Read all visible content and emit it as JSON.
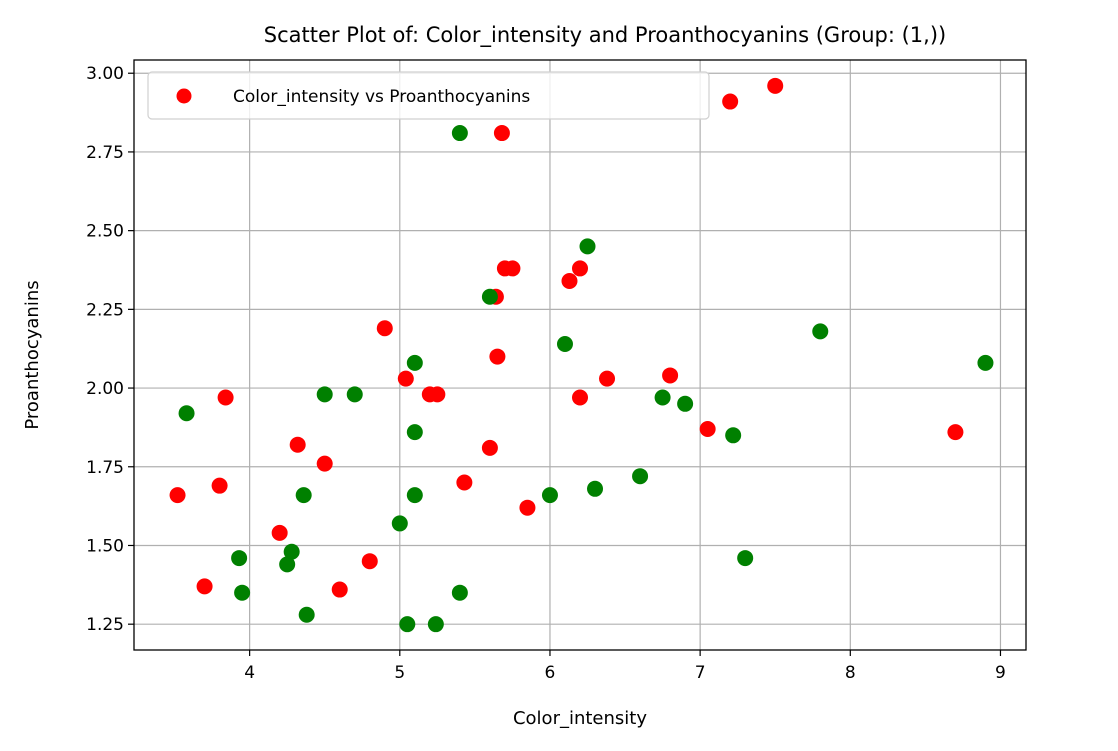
{
  "chart_data": {
    "type": "scatter",
    "title": "Scatter Plot of: Color_intensity and Proanthocyanins (Group: (1,))",
    "xlabel": "Color_intensity",
    "ylabel": "Proanthocyanins",
    "xlim": [
      3.23,
      9.17
    ],
    "ylim": [
      1.168,
      3.042
    ],
    "xticks": [
      4,
      5,
      6,
      7,
      8,
      9
    ],
    "yticks": [
      1.25,
      1.5,
      1.75,
      2.0,
      2.25,
      2.5,
      2.75,
      3.0
    ],
    "ytick_labels": [
      "1.25",
      "1.50",
      "1.75",
      "2.00",
      "2.25",
      "2.50",
      "2.75",
      "3.00"
    ],
    "grid": true,
    "legend_position": "upper-left",
    "legend": [
      {
        "label": "Color_intensity vs Proanthocyanins",
        "color": "#ff0000"
      }
    ],
    "series": [
      {
        "name": "Color_intensity vs Proanthocyanins",
        "color": "#ff0000",
        "points": [
          [
            3.52,
            1.66
          ],
          [
            3.7,
            1.37
          ],
          [
            3.8,
            1.69
          ],
          [
            3.84,
            1.97
          ],
          [
            4.2,
            1.54
          ],
          [
            4.32,
            1.82
          ],
          [
            4.5,
            1.76
          ],
          [
            4.6,
            1.36
          ],
          [
            4.8,
            1.45
          ],
          [
            4.9,
            2.19
          ],
          [
            5.04,
            2.03
          ],
          [
            5.2,
            1.98
          ],
          [
            5.25,
            1.98
          ],
          [
            5.43,
            1.7
          ],
          [
            5.6,
            1.81
          ],
          [
            5.64,
            2.29
          ],
          [
            5.65,
            2.1
          ],
          [
            5.68,
            2.81
          ],
          [
            5.7,
            2.38
          ],
          [
            5.75,
            2.38
          ],
          [
            5.85,
            1.62
          ],
          [
            6.13,
            2.34
          ],
          [
            6.2,
            2.38
          ],
          [
            6.2,
            1.97
          ],
          [
            6.38,
            2.03
          ],
          [
            6.8,
            2.04
          ],
          [
            7.05,
            1.87
          ],
          [
            7.2,
            2.91
          ],
          [
            7.5,
            2.96
          ],
          [
            8.7,
            1.86
          ]
        ]
      },
      {
        "color": "#008000",
        "points": [
          [
            3.58,
            1.92
          ],
          [
            3.93,
            1.46
          ],
          [
            3.95,
            1.35
          ],
          [
            4.25,
            1.44
          ],
          [
            4.28,
            1.48
          ],
          [
            4.36,
            1.66
          ],
          [
            4.38,
            1.28
          ],
          [
            4.5,
            1.98
          ],
          [
            4.7,
            1.98
          ],
          [
            5.0,
            1.57
          ],
          [
            5.05,
            1.25
          ],
          [
            5.1,
            2.08
          ],
          [
            5.1,
            1.86
          ],
          [
            5.1,
            1.66
          ],
          [
            5.24,
            1.25
          ],
          [
            5.4,
            2.81
          ],
          [
            5.4,
            1.35
          ],
          [
            5.6,
            2.29
          ],
          [
            6.0,
            1.66
          ],
          [
            6.1,
            2.14
          ],
          [
            6.25,
            2.45
          ],
          [
            6.3,
            1.68
          ],
          [
            6.6,
            1.72
          ],
          [
            6.75,
            1.97
          ],
          [
            6.9,
            1.95
          ],
          [
            7.22,
            1.85
          ],
          [
            7.3,
            1.46
          ],
          [
            7.8,
            2.18
          ],
          [
            8.9,
            2.08
          ]
        ]
      }
    ]
  }
}
